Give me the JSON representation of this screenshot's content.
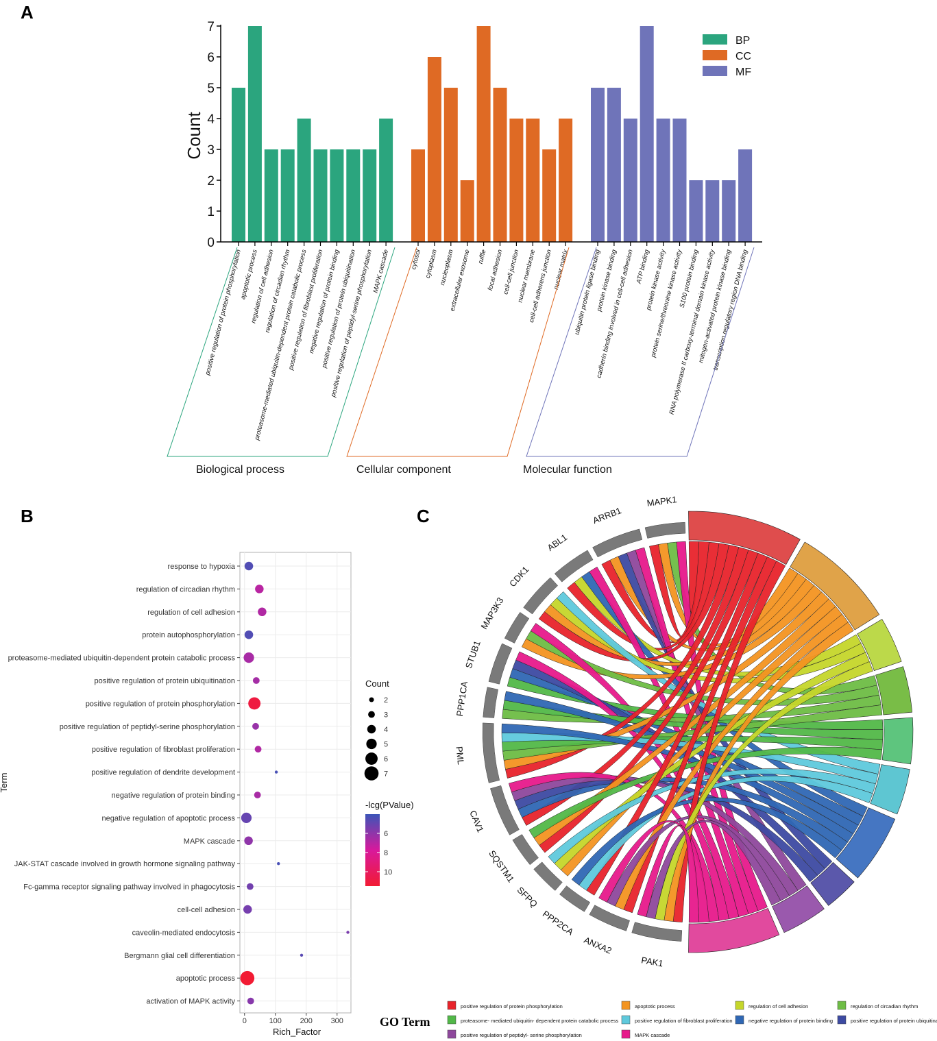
{
  "panels": {
    "a": "A",
    "b": "B",
    "c": "C"
  },
  "colors": {
    "BP": "#2ba57e",
    "CC": "#df6a24",
    "MF": "#6f74b9",
    "axis": "#000000",
    "gray_block": "#7a7a7a"
  },
  "chart_data": [
    {
      "id": "A",
      "type": "bar",
      "ylabel": "Count",
      "ylim": [
        0,
        7
      ],
      "yticks": [
        0,
        1,
        2,
        3,
        4,
        5,
        6,
        7
      ],
      "legend": {
        "position": "top-right",
        "entries": [
          "BP",
          "CC",
          "MF"
        ]
      },
      "groups": [
        {
          "key": "BP",
          "label": "Biological process",
          "categories": [
            "positive regulation of protein phosphorylation",
            "apoptotic process",
            "regulation of cell adhesion",
            "regulation of circadian rhythm",
            "proteasome-mediated ubiquitin-dependent protein catabolic process",
            "positive regulation of fibroblast proliferation",
            "negative regulation of protein binding",
            "positive regulation of protein ubiquitination",
            "positive regulation of peptidyl-serine phosphorylation",
            "MAPK cascade"
          ],
          "values": [
            5,
            7,
            3,
            3,
            4,
            3,
            3,
            3,
            3,
            4
          ]
        },
        {
          "key": "CC",
          "label": "Cellular component",
          "categories": [
            "cytosol",
            "cytoplasm",
            "nucleoplasm",
            "extracellular exosome",
            "ruffle",
            "focal adhesion",
            "cell-cell junction",
            "nuclear membrane",
            "cell-cell adherens junction",
            "nuclear matrix"
          ],
          "values": [
            3,
            6,
            5,
            2,
            7,
            5,
            4,
            4,
            3,
            4
          ]
        },
        {
          "key": "MF",
          "label": "Molecular function",
          "categories": [
            "ubiquitin protein ligase binding",
            "protein kinase binding",
            "cadherin binding involved in cell-cell adhesion",
            "ATP binding",
            "protein kinase activity",
            "protein serine/threonine kinase activity",
            "S100 protein binding",
            "RNA polymerase II carboxy-terminal domain kinase activity",
            "mitogen-activated protein kinase binding",
            "transcription regulatory region DNA binding"
          ],
          "values": [
            5,
            5,
            4,
            7,
            4,
            4,
            2,
            2,
            2,
            3
          ]
        }
      ]
    },
    {
      "id": "B",
      "type": "scatter",
      "xlabel": "Rich_Factor",
      "ylabel": "Term",
      "xlim": [
        -15,
        345
      ],
      "xticks": [
        0,
        100,
        200,
        300
      ],
      "size_legend": {
        "title": "Count",
        "values": [
          2,
          3,
          4,
          5,
          6,
          7
        ]
      },
      "color_legend": {
        "title": "-lcg(PValue)",
        "ticks": [
          6,
          8,
          10
        ],
        "range": [
          4,
          11.5
        ],
        "colors": [
          "#3c55b8",
          "#d8199c",
          "#f21b33"
        ]
      },
      "points": [
        {
          "term": "response to hypoxia",
          "x": 14,
          "count": 4,
          "logp": 4.5
        },
        {
          "term": "regulation of circadian rhythm",
          "x": 48,
          "count": 4,
          "logp": 7.0
        },
        {
          "term": "regulation of cell adhesion",
          "x": 57,
          "count": 4,
          "logp": 6.8
        },
        {
          "term": "protein autophosphorylation",
          "x": 14,
          "count": 4,
          "logp": 4.5
        },
        {
          "term": "proteasome-mediated ubiquitin-dependent protein catabolic process",
          "x": 14,
          "count": 5,
          "logp": 6.6
        },
        {
          "term": "positive regulation of protein ubiquitination",
          "x": 38,
          "count": 3,
          "logp": 6.5
        },
        {
          "term": "positive regulation of protein phosphorylation",
          "x": 32,
          "count": 6,
          "logp": 11.0
        },
        {
          "term": "positive regulation of peptidyl-serine phosphorylation",
          "x": 36,
          "count": 3,
          "logp": 6.2
        },
        {
          "term": "positive regulation of fibroblast proliferation",
          "x": 44,
          "count": 3,
          "logp": 6.8
        },
        {
          "term": "positive regulation of dendrite development",
          "x": 103,
          "count": 1,
          "logp": 4.3
        },
        {
          "term": "negative regulation of protein binding",
          "x": 42,
          "count": 3,
          "logp": 6.6
        },
        {
          "term": "negative regulation of apoptotic process",
          "x": 6,
          "count": 5,
          "logp": 5.0
        },
        {
          "term": "MAPK cascade",
          "x": 13,
          "count": 4,
          "logp": 6.0
        },
        {
          "term": "JAK-STAT cascade involved in growth hormone signaling pathway",
          "x": 110,
          "count": 1,
          "logp": 4.3
        },
        {
          "term": "Fc-gamma receptor signaling pathway involved in phagocytosis",
          "x": 18,
          "count": 3,
          "logp": 5.3
        },
        {
          "term": "cell-cell adhesion",
          "x": 10,
          "count": 4,
          "logp": 5.4
        },
        {
          "term": "caveolin-mediated endocytosis",
          "x": 335,
          "count": 1,
          "logp": 5.5
        },
        {
          "term": "Bergmann glial cell differentiation",
          "x": 185,
          "count": 1,
          "logp": 4.7
        },
        {
          "term": "apoptotic process",
          "x": 9,
          "count": 7,
          "logp": 11.5
        },
        {
          "term": "activation of MAPK activity",
          "x": 20,
          "count": 3,
          "logp": 5.8
        }
      ]
    },
    {
      "id": "C",
      "type": "chord",
      "genes": [
        "MAPK1",
        "ARRB1",
        "ABL1",
        "CDK1",
        "MAP3K3",
        "STUB1",
        "PPP1CA",
        "PML",
        "CAV1",
        "SQSTM1",
        "SFPQ",
        "PPP2CA",
        "ANXA2",
        "PAK1"
      ],
      "legend_title": "GO Term",
      "terms": [
        {
          "name": "positive regulation of protein phosphorylation",
          "color": "#e8232b"
        },
        {
          "name": "apoptotic process",
          "color": "#f39421"
        },
        {
          "name": "regulation of cell adhesion",
          "color": "#c5d62a"
        },
        {
          "name": "regulation of circadian rhythm",
          "color": "#6ebd45"
        },
        {
          "name": "proteasome- mediated ubiquitin- dependent protein catabolic process",
          "color": "#52b848"
        },
        {
          "name": "positive regulation of fibroblast proliferation",
          "color": "#5ec9dc"
        },
        {
          "name": "negative regulation of protein binding",
          "color": "#2f67b4"
        },
        {
          "name": "positive regulation of protein ubiquitination",
          "color": "#3d4aa2"
        },
        {
          "name": "positive regulation of peptidyl- serine phosphorylation",
          "color": "#8e489c"
        },
        {
          "name": "MAPK cascade",
          "color": "#e7198b"
        }
      ],
      "term_arc_colors": [
        "#df4d4d",
        "#e0a349",
        "#bcd94a",
        "#79bd47",
        "#5ec57e",
        "#5ec6d2",
        "#4576c2",
        "#5b58ab",
        "#9a59ad",
        "#e14a9e"
      ],
      "links": [
        {
          "gene": "MAPK1",
          "terms": [
            0,
            1,
            3,
            9
          ]
        },
        {
          "gene": "ARRB1",
          "terms": [
            0,
            1,
            7,
            8,
            9
          ]
        },
        {
          "gene": "ABL1",
          "terms": [
            0,
            2,
            6,
            9
          ]
        },
        {
          "gene": "CDK1",
          "terms": [
            0,
            1,
            2,
            5
          ]
        },
        {
          "gene": "MAP3K3",
          "terms": [
            1,
            3,
            9
          ]
        },
        {
          "gene": "STUB1",
          "terms": [
            4,
            6,
            7,
            9
          ]
        },
        {
          "gene": "PPP1CA",
          "terms": [
            3,
            4,
            6
          ]
        },
        {
          "gene": "PML",
          "terms": [
            0,
            1,
            3,
            4,
            5,
            6
          ]
        },
        {
          "gene": "CAV1",
          "terms": [
            0,
            6,
            7,
            8,
            9
          ]
        },
        {
          "gene": "SQSTM1",
          "terms": [
            0,
            1,
            4
          ]
        },
        {
          "gene": "SFPQ",
          "terms": [
            1,
            2,
            5
          ]
        },
        {
          "gene": "PPP2CA",
          "terms": [
            0,
            5,
            6
          ]
        },
        {
          "gene": "ANXA2",
          "terms": [
            0,
            1,
            8,
            9
          ]
        },
        {
          "gene": "PAK1",
          "terms": [
            0,
            1,
            2,
            8,
            9
          ]
        }
      ]
    }
  ]
}
